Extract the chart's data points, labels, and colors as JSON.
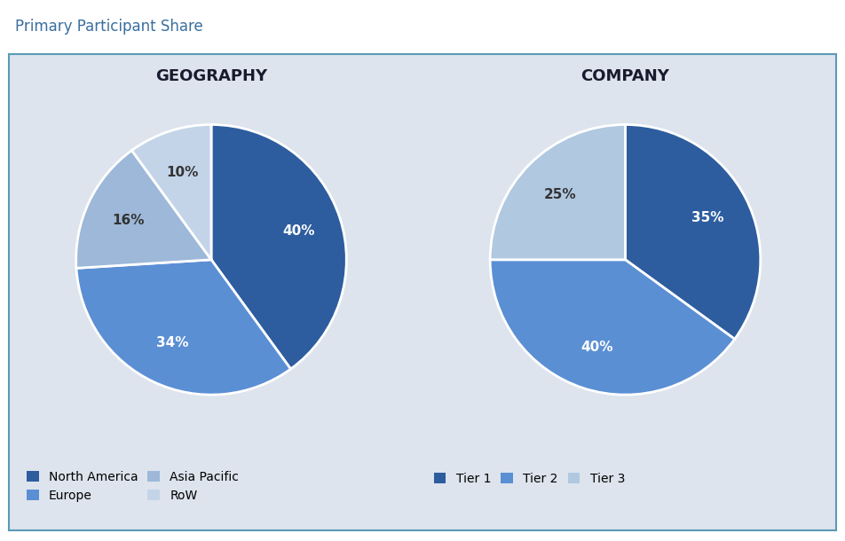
{
  "title": "Primary Participant Share",
  "background_color": "#dde4ed",
  "outer_background": "#ffffff",
  "border_color": "#5a9ab5",
  "geo_title": "GEOGRAPHY",
  "geo_labels": [
    "North America",
    "Europe",
    "Asia Pacific",
    "RoW"
  ],
  "geo_values": [
    40,
    34,
    16,
    10
  ],
  "geo_colors": [
    "#2d5d9f",
    "#5b8fd4",
    "#9db8d8",
    "#c4d4e8"
  ],
  "geo_startangle": 90,
  "comp_title": "COMPANY",
  "comp_labels": [
    "Tier 1",
    "Tier 2",
    "Tier 3"
  ],
  "comp_values": [
    35,
    40,
    25
  ],
  "comp_colors": [
    "#2d5d9f",
    "#5b8fd4",
    "#b0c8e0"
  ],
  "comp_startangle": 90,
  "title_fontsize": 12,
  "pie_title_fontsize": 13,
  "label_fontsize": 11,
  "legend_fontsize": 10
}
